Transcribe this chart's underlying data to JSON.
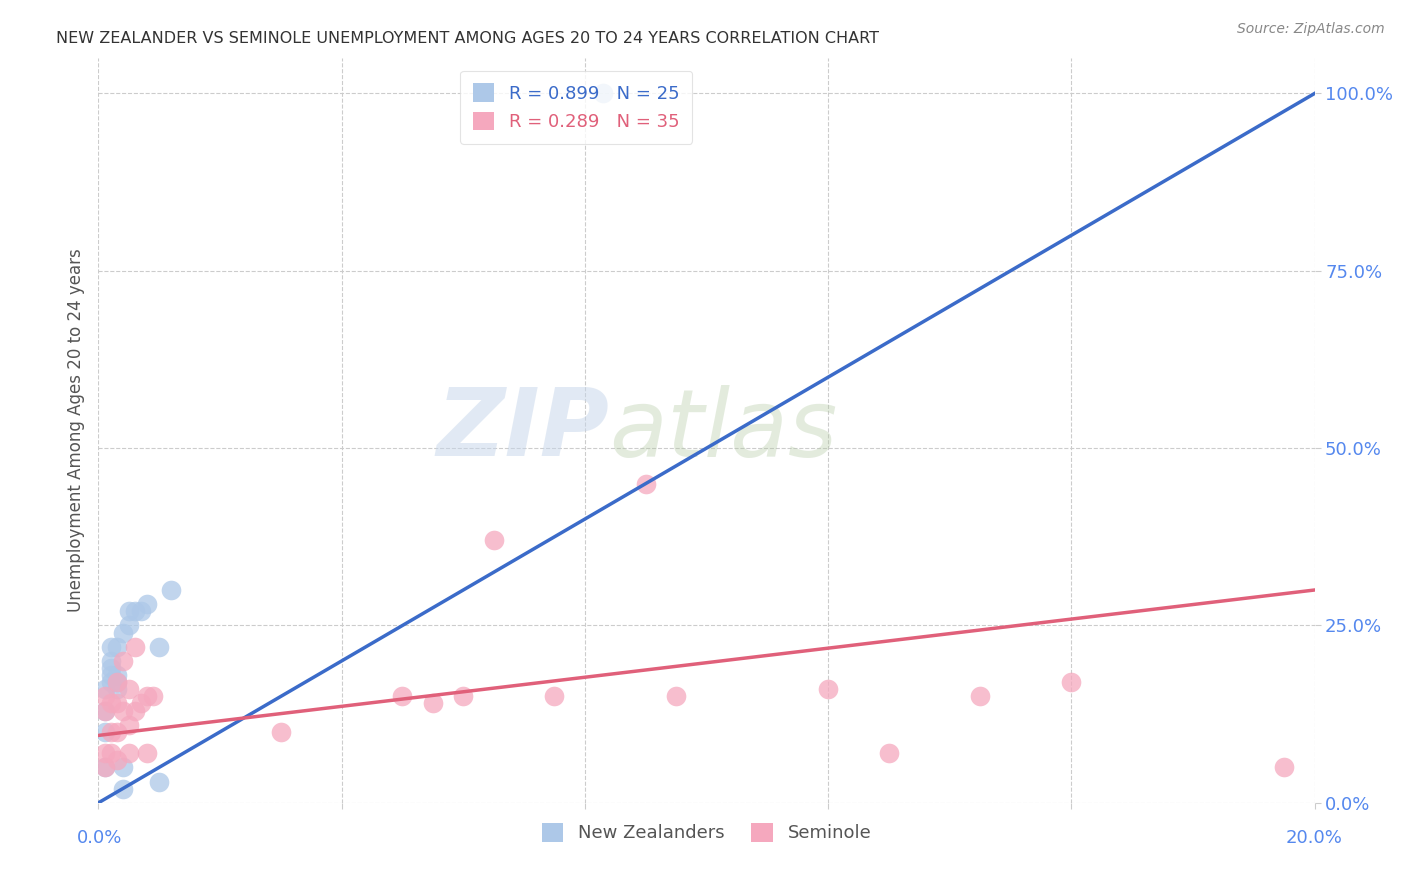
{
  "title": "NEW ZEALANDER VS SEMINOLE UNEMPLOYMENT AMONG AGES 20 TO 24 YEARS CORRELATION CHART",
  "source": "Source: ZipAtlas.com",
  "ylabel": "Unemployment Among Ages 20 to 24 years",
  "xlim": [
    0.0,
    0.2
  ],
  "ylim": [
    0.0,
    1.05
  ],
  "yticks": [
    0.0,
    0.25,
    0.5,
    0.75,
    1.0
  ],
  "ytick_labels": [
    "0.0%",
    "25.0%",
    "50.0%",
    "75.0%",
    "100.0%"
  ],
  "nz_color": "#adc8e8",
  "sem_color": "#f5a8be",
  "nz_line_color": "#3b6bc9",
  "sem_line_color": "#e0607a",
  "nz_R": 0.899,
  "nz_N": 25,
  "sem_R": 0.289,
  "sem_N": 35,
  "legend_label_nz": "New Zealanders",
  "legend_label_sem": "Seminole",
  "watermark_zip": "ZIP",
  "watermark_atlas": "atlas",
  "grid_color": "#cccccc",
  "background_color": "#ffffff",
  "title_color": "#333333",
  "axis_color": "#5588ee",
  "nz_x": [
    0.001,
    0.001,
    0.001,
    0.001,
    0.002,
    0.002,
    0.002,
    0.002,
    0.002,
    0.003,
    0.003,
    0.003,
    0.003,
    0.004,
    0.004,
    0.004,
    0.005,
    0.005,
    0.006,
    0.007,
    0.008,
    0.01,
    0.01,
    0.012,
    0.083
  ],
  "nz_y": [
    0.05,
    0.1,
    0.13,
    0.16,
    0.17,
    0.18,
    0.19,
    0.2,
    0.22,
    0.16,
    0.17,
    0.18,
    0.22,
    0.02,
    0.05,
    0.24,
    0.25,
    0.27,
    0.27,
    0.27,
    0.28,
    0.03,
    0.22,
    0.3,
    1.0
  ],
  "sem_x": [
    0.001,
    0.001,
    0.001,
    0.001,
    0.002,
    0.002,
    0.002,
    0.003,
    0.003,
    0.003,
    0.003,
    0.004,
    0.004,
    0.005,
    0.005,
    0.005,
    0.006,
    0.006,
    0.007,
    0.008,
    0.008,
    0.009,
    0.03,
    0.05,
    0.055,
    0.06,
    0.065,
    0.075,
    0.09,
    0.095,
    0.12,
    0.13,
    0.145,
    0.16,
    0.195
  ],
  "sem_y": [
    0.05,
    0.07,
    0.13,
    0.15,
    0.07,
    0.1,
    0.14,
    0.06,
    0.1,
    0.14,
    0.17,
    0.13,
    0.2,
    0.07,
    0.11,
    0.16,
    0.13,
    0.22,
    0.14,
    0.07,
    0.15,
    0.15,
    0.1,
    0.15,
    0.14,
    0.15,
    0.37,
    0.15,
    0.45,
    0.15,
    0.16,
    0.07,
    0.15,
    0.17,
    0.05
  ],
  "nz_line_x": [
    0.0,
    0.2
  ],
  "nz_line_y": [
    0.0,
    1.0
  ],
  "sem_line_x": [
    0.0,
    0.2
  ],
  "sem_line_y": [
    0.095,
    0.3
  ]
}
